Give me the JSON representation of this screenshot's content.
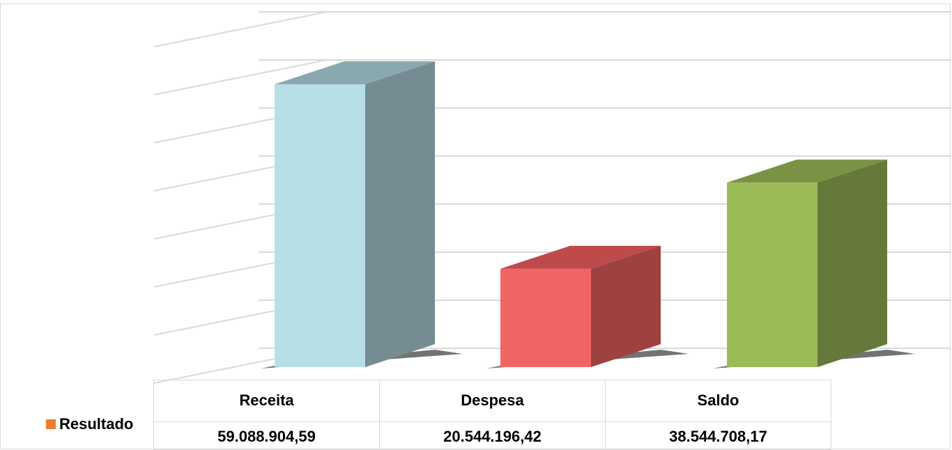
{
  "chart_data": {
    "type": "bar",
    "style": "3d-column",
    "categories": [
      "Receita",
      "Despesa",
      "Saldo"
    ],
    "series": [
      {
        "name": "Resultado",
        "values": [
          59088904.59,
          20544196.42,
          38544708.17
        ]
      }
    ],
    "value_labels": [
      "59.088.904,59",
      "20.544.196,42",
      "38.544.708,17"
    ],
    "colors": {
      "bars": [
        "#b7dfe8",
        "#f26464",
        "#9bbb59"
      ],
      "bar_sides": [
        "#748c92",
        "#9e4141",
        "#65793a"
      ],
      "bar_tops": [
        "#8aa8b0",
        "#be4b4b",
        "#7a9244"
      ],
      "series_key": "#ed7d31",
      "gridlines": "#d9d9d9"
    },
    "ylim": [
      0,
      60000000
    ],
    "gridlines": true,
    "legend": "data-table"
  }
}
